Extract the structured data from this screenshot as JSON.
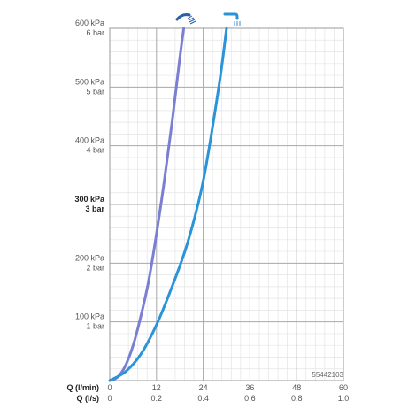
{
  "chart_data": {
    "type": "line",
    "y_axis": {
      "ylim": [
        0,
        600
      ],
      "ticks": [
        {
          "value": 100,
          "kpa": "100 kPa",
          "bar": "1 bar",
          "emphasis": false
        },
        {
          "value": 200,
          "kpa": "200 kPa",
          "bar": "2 bar",
          "emphasis": false
        },
        {
          "value": 300,
          "kpa": "300 kPa",
          "bar": "3 bar",
          "emphasis": true
        },
        {
          "value": 400,
          "kpa": "400 kPa",
          "bar": "4 bar",
          "emphasis": false
        },
        {
          "value": 500,
          "kpa": "500 kPa",
          "bar": "5 bar",
          "emphasis": false
        },
        {
          "value": 600,
          "kpa": "600 kPa",
          "bar": "6 bar",
          "emphasis": false
        }
      ]
    },
    "x_axis": {
      "xlim": [
        0,
        60
      ],
      "label_lmin": "Q (l/min)",
      "label_ls": "Q (l/s)",
      "ticks": [
        {
          "value": 0,
          "lmin": "0",
          "ls": "0"
        },
        {
          "value": 12,
          "lmin": "12",
          "ls": "0.2"
        },
        {
          "value": 24,
          "lmin": "24",
          "ls": "0.4"
        },
        {
          "value": 36,
          "lmin": "36",
          "ls": "0.6"
        },
        {
          "value": 48,
          "lmin": "48",
          "ls": "0.8"
        },
        {
          "value": 60,
          "lmin": "60",
          "ls": "1.0"
        }
      ]
    },
    "grid": true,
    "series": [
      {
        "icon": "rain-spray-icon",
        "color": "#7b7fd4",
        "x": [
          0,
          2,
          4,
          6,
          8,
          10,
          12,
          14,
          16,
          18,
          19
        ],
        "y": [
          0,
          6,
          25,
          60,
          110,
          170,
          250,
          340,
          440,
          550,
          600
        ]
      },
      {
        "icon": "shower-head-icon",
        "color": "#2b93d8",
        "x": [
          0,
          4,
          8,
          12,
          16,
          20,
          24,
          28,
          30
        ],
        "y": [
          0,
          15,
          45,
          95,
          160,
          235,
          340,
          500,
          600
        ]
      }
    ],
    "product_code": "55442103"
  }
}
